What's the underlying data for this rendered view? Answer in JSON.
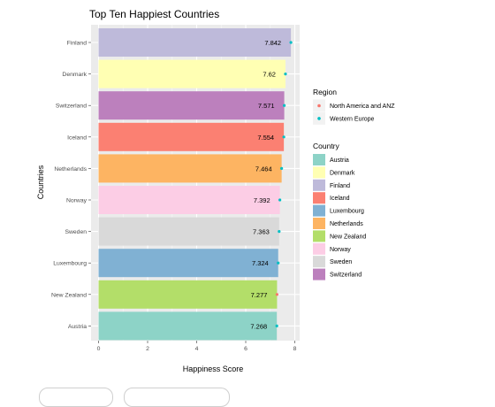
{
  "chart_data": {
    "type": "bar",
    "orientation": "horizontal",
    "title": "Top Ten Happiest Countries",
    "xlabel": "Happiness Score",
    "ylabel": "Countries",
    "xlim": [
      0,
      8
    ],
    "x_ticks": [
      "0",
      "2",
      "4",
      "6",
      "8"
    ],
    "grid": true,
    "background": "#ebebeb",
    "categories": [
      "Finland",
      "Denmark",
      "Switzerland",
      "Iceland",
      "Netherlands",
      "Norway",
      "Sweden",
      "Luxembourg",
      "New Zealand",
      "Austria"
    ],
    "values": [
      7.842,
      7.62,
      7.571,
      7.554,
      7.464,
      7.392,
      7.363,
      7.324,
      7.277,
      7.268
    ],
    "value_labels": [
      "7.842",
      "7.62",
      "7.571",
      "7.554",
      "7.464",
      "7.392",
      "7.363",
      "7.324",
      "7.277",
      "7.268"
    ],
    "bar_colors": [
      "#bebada",
      "#ffffb3",
      "#bc80bd",
      "#fb8072",
      "#fdb462",
      "#fccde5",
      "#d9d9d9",
      "#80b1d3",
      "#b3de69",
      "#8dd3c7"
    ],
    "region_of_point": [
      "Western Europe",
      "Western Europe",
      "Western Europe",
      "Western Europe",
      "Western Europe",
      "Western Europe",
      "Western Europe",
      "Western Europe",
      "North America and ANZ",
      "Western Europe"
    ],
    "legend_placement": "right",
    "legends": [
      {
        "title": "Region",
        "kind": "point",
        "entries": [
          {
            "label": "North America and ANZ",
            "color": "#f8766d"
          },
          {
            "label": "Western Europe",
            "color": "#00bfc4"
          }
        ]
      },
      {
        "title": "Country",
        "kind": "fill",
        "entries": [
          {
            "label": "Austria",
            "color": "#8dd3c7"
          },
          {
            "label": "Denmark",
            "color": "#ffffb3"
          },
          {
            "label": "Finland",
            "color": "#bebada"
          },
          {
            "label": "Iceland",
            "color": "#fb8072"
          },
          {
            "label": "Luxembourg",
            "color": "#80b1d3"
          },
          {
            "label": "Netherlands",
            "color": "#fdb462"
          },
          {
            "label": "New Zealand",
            "color": "#b3de69"
          },
          {
            "label": "Norway",
            "color": "#fccde5"
          },
          {
            "label": "Sweden",
            "color": "#d9d9d9"
          },
          {
            "label": "Switzerland",
            "color": "#bc80bd"
          }
        ]
      }
    ]
  }
}
